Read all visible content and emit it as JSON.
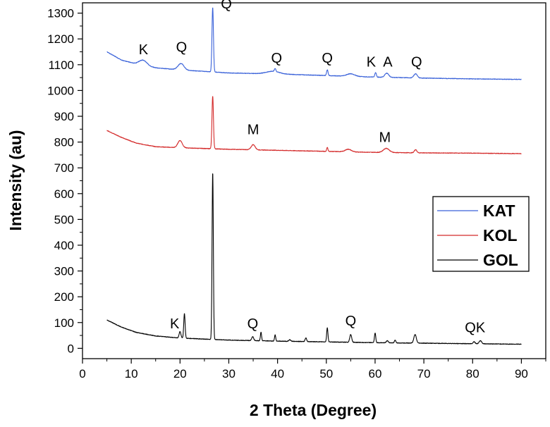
{
  "chart_data": {
    "type": "line",
    "title": "",
    "xlabel": "2 Theta (Degree)",
    "ylabel": "Intensity (au)",
    "xlim": [
      0,
      95
    ],
    "ylim": [
      -40,
      1340
    ],
    "xticks": [
      0,
      10,
      20,
      30,
      40,
      50,
      60,
      70,
      80,
      90
    ],
    "yticks": [
      0,
      100,
      200,
      300,
      400,
      500,
      600,
      700,
      800,
      900,
      1000,
      1100,
      1200,
      1300
    ],
    "legend_position": "right",
    "colors": {
      "KAT": "#3a62d9",
      "KOL": "#d42b2b",
      "GOL": "#000000",
      "axis": "#000000"
    },
    "series": [
      {
        "name": "KAT",
        "baseline": [
          [
            5,
            1150
          ],
          [
            8,
            1118
          ],
          [
            11,
            1103
          ],
          [
            15,
            1088
          ],
          [
            20,
            1080
          ],
          [
            30,
            1068
          ],
          [
            40,
            1064
          ],
          [
            50,
            1058
          ],
          [
            60,
            1052
          ],
          [
            70,
            1048
          ],
          [
            80,
            1045
          ],
          [
            90,
            1043
          ]
        ],
        "peaks": [
          [
            12.4,
            20,
            0.8
          ],
          [
            20.2,
            25,
            0.6
          ],
          [
            26.7,
            250,
            0.15
          ],
          [
            39.0,
            10,
            1.3
          ],
          [
            39.5,
            12,
            0.15
          ],
          [
            50.2,
            22,
            0.15
          ],
          [
            55.0,
            10,
            0.8
          ],
          [
            60.1,
            18,
            0.15
          ],
          [
            62.4,
            16,
            0.4
          ],
          [
            68.3,
            16,
            0.35
          ]
        ]
      },
      {
        "name": "KOL",
        "baseline": [
          [
            5,
            845
          ],
          [
            8,
            818
          ],
          [
            11,
            796
          ],
          [
            15,
            782
          ],
          [
            20,
            778
          ],
          [
            30,
            772
          ],
          [
            40,
            768
          ],
          [
            50,
            764
          ],
          [
            60,
            760
          ],
          [
            70,
            758
          ],
          [
            80,
            757
          ],
          [
            90,
            755
          ]
        ],
        "peaks": [
          [
            20.0,
            28,
            0.45
          ],
          [
            26.7,
            205,
            0.15
          ],
          [
            35.0,
            20,
            0.4
          ],
          [
            50.2,
            16,
            0.12
          ],
          [
            54.5,
            10,
            0.6
          ],
          [
            62.3,
            16,
            0.6
          ],
          [
            68.3,
            12,
            0.25
          ]
        ]
      },
      {
        "name": "GOL",
        "baseline": [
          [
            5,
            110
          ],
          [
            8,
            82
          ],
          [
            11,
            62
          ],
          [
            15,
            48
          ],
          [
            20,
            40
          ],
          [
            26,
            35
          ],
          [
            30,
            32
          ],
          [
            40,
            28
          ],
          [
            50,
            25
          ],
          [
            60,
            22
          ],
          [
            70,
            20
          ],
          [
            80,
            18
          ],
          [
            90,
            16
          ]
        ],
        "peaks": [
          [
            20.0,
            25,
            0.18
          ],
          [
            20.9,
            95,
            0.14
          ],
          [
            26.7,
            650,
            0.13
          ],
          [
            34.9,
            15,
            0.2
          ],
          [
            36.6,
            33,
            0.12
          ],
          [
            39.5,
            24,
            0.12
          ],
          [
            42.5,
            6,
            0.2
          ],
          [
            45.8,
            14,
            0.15
          ],
          [
            50.2,
            55,
            0.13
          ],
          [
            55.0,
            30,
            0.2
          ],
          [
            60.0,
            38,
            0.13
          ],
          [
            62.5,
            8,
            0.2
          ],
          [
            64.1,
            10,
            0.15
          ],
          [
            68.2,
            33,
            0.25
          ],
          [
            80.3,
            8,
            0.2
          ],
          [
            81.6,
            12,
            0.25
          ]
        ]
      }
    ],
    "annotations": [
      {
        "text": "K",
        "x": 12.5,
        "y": 1140
      },
      {
        "text": "Q",
        "x": 20.3,
        "y": 1150
      },
      {
        "text": "Q",
        "x": 29.5,
        "y": 1318
      },
      {
        "text": "Q",
        "x": 39.8,
        "y": 1108
      },
      {
        "text": "Q",
        "x": 50.2,
        "y": 1108
      },
      {
        "text": "K",
        "x": 59.2,
        "y": 1093
      },
      {
        "text": "A",
        "x": 62.6,
        "y": 1093
      },
      {
        "text": "Q",
        "x": 68.5,
        "y": 1093
      },
      {
        "text": "M",
        "x": 35.0,
        "y": 830
      },
      {
        "text": "M",
        "x": 62.0,
        "y": 800
      },
      {
        "text": "K",
        "x": 18.9,
        "y": 78
      },
      {
        "text": "Q",
        "x": 34.9,
        "y": 78
      },
      {
        "text": "Q",
        "x": 55.0,
        "y": 88
      },
      {
        "text": "QK",
        "x": 80.5,
        "y": 62
      }
    ]
  }
}
